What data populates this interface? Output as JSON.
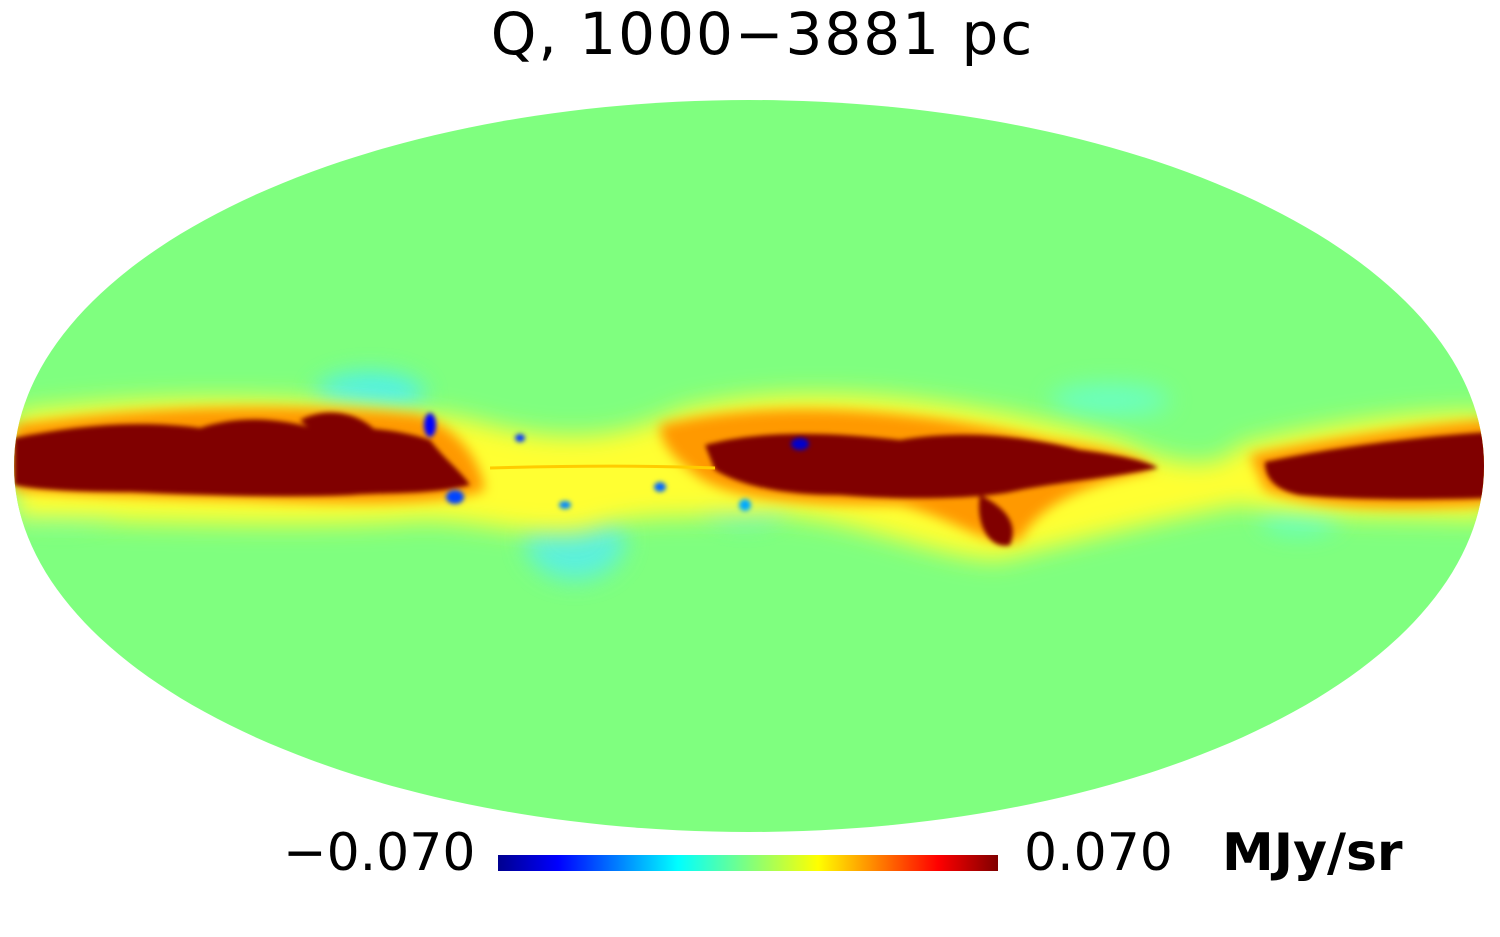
{
  "map": {
    "title": "Q, 1000−3881 pc",
    "projection": "mollweide",
    "coordinate_frame": "galactic",
    "background_color": "#7fff7f"
  },
  "colorbar": {
    "min_label": "−0.070",
    "max_label": "0.070",
    "unit": "MJy/sr",
    "min_value": -0.07,
    "max_value": 0.07,
    "colormap": "jet",
    "colors": [
      "#00008f",
      "#0000ff",
      "#00ffff",
      "#7fff7f",
      "#ffff00",
      "#ff0000",
      "#800000"
    ]
  }
}
